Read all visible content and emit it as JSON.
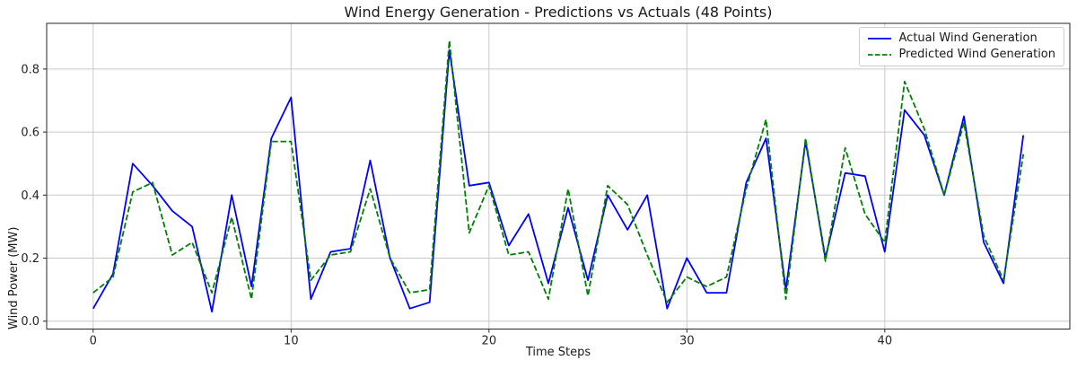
{
  "figure": {
    "title": "Wind Energy Generation - Predictions vs Actuals (48 Points)"
  },
  "chart_data": {
    "type": "line",
    "title": "Wind Energy Generation - Predictions vs Actuals (48 Points)",
    "xlabel": "Time Steps",
    "ylabel": "Wind Power (MW)",
    "x": [
      0,
      1,
      2,
      3,
      4,
      5,
      6,
      7,
      8,
      9,
      10,
      11,
      12,
      13,
      14,
      15,
      16,
      17,
      18,
      19,
      20,
      21,
      22,
      23,
      24,
      25,
      26,
      27,
      28,
      29,
      30,
      31,
      32,
      33,
      34,
      35,
      36,
      37,
      38,
      39,
      40,
      41,
      42,
      43,
      44,
      45,
      46,
      47
    ],
    "series": [
      {
        "name": "Actual Wind Generation",
        "color": "#0000ff",
        "line_style": "solid",
        "values": [
          0.04,
          0.15,
          0.5,
          0.43,
          0.35,
          0.3,
          0.03,
          0.4,
          0.11,
          0.58,
          0.71,
          0.07,
          0.22,
          0.23,
          0.51,
          0.2,
          0.04,
          0.06,
          0.86,
          0.43,
          0.44,
          0.24,
          0.34,
          0.12,
          0.36,
          0.13,
          0.4,
          0.29,
          0.4,
          0.04,
          0.2,
          0.09,
          0.09,
          0.44,
          0.58,
          0.1,
          0.57,
          0.2,
          0.47,
          0.46,
          0.22,
          0.67,
          0.59,
          0.4,
          0.65,
          0.25,
          0.12,
          0.59
        ]
      },
      {
        "name": "Predicted Wind Generation",
        "color": "#008000",
        "line_style": "dashed",
        "values": [
          0.09,
          0.14,
          0.41,
          0.44,
          0.21,
          0.25,
          0.09,
          0.33,
          0.07,
          0.57,
          0.57,
          0.13,
          0.21,
          0.22,
          0.42,
          0.2,
          0.09,
          0.1,
          0.89,
          0.28,
          0.43,
          0.21,
          0.22,
          0.07,
          0.42,
          0.08,
          0.43,
          0.37,
          0.21,
          0.06,
          0.14,
          0.11,
          0.14,
          0.42,
          0.64,
          0.07,
          0.58,
          0.19,
          0.55,
          0.34,
          0.25,
          0.76,
          0.61,
          0.4,
          0.63,
          0.27,
          0.13,
          0.53
        ]
      }
    ],
    "xticks": [
      0,
      10,
      20,
      30,
      40
    ],
    "yticks": [
      0.0,
      0.2,
      0.4,
      0.6,
      0.8
    ],
    "xlim": [
      -2.35,
      49.35
    ],
    "ylim": [
      -0.025,
      0.945
    ],
    "grid": true,
    "legend_position": "upper right"
  }
}
